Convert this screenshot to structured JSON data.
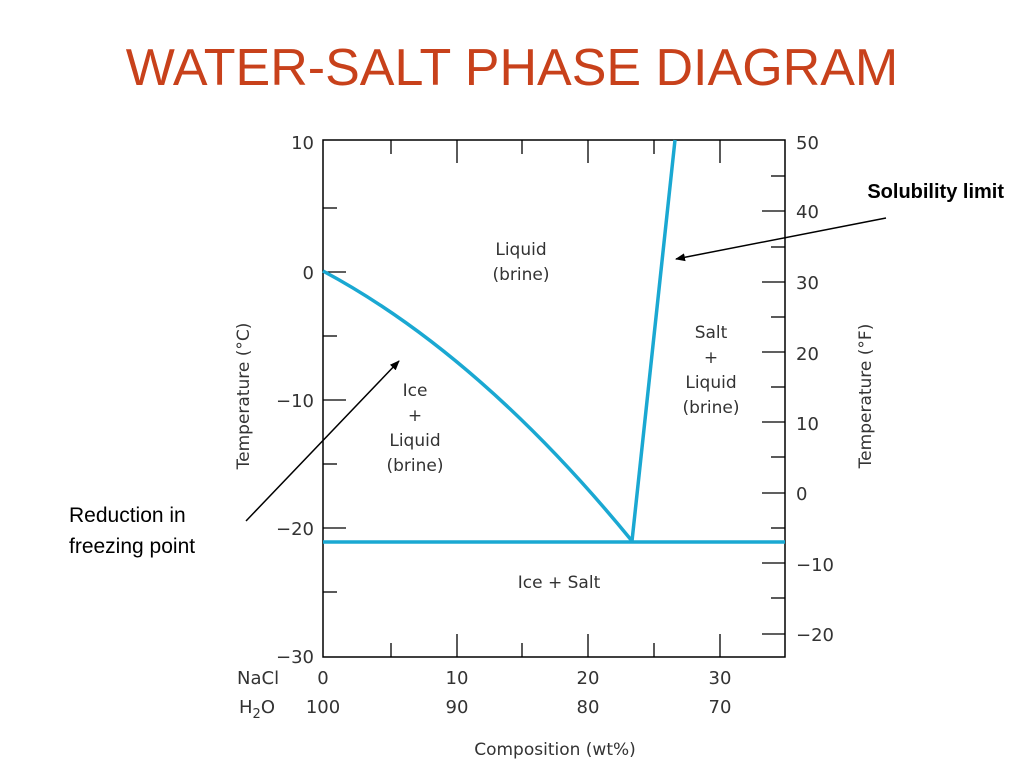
{
  "title": "WATER-SALT PHASE DIAGRAM",
  "annotations": {
    "solubility_limit": "Solubility limit",
    "freezing_line1": "Reduction in",
    "freezing_line2": "freezing point"
  },
  "colors": {
    "title": "#c8411b",
    "phase_boundary": "#1aa8d2",
    "axes": "#000000"
  },
  "left_axis": {
    "title": "Temperature (°C)",
    "ticks": [
      "10",
      "0",
      "−10",
      "−20",
      "−30"
    ]
  },
  "right_axis": {
    "title": "Temperature (°F)",
    "ticks": [
      "50",
      "40",
      "30",
      "20",
      "10",
      "0",
      "−10",
      "−20"
    ]
  },
  "x_axis": {
    "title": "Composition (wt%)",
    "row1_label": "NaCl",
    "row2_label_main": "H",
    "row2_label_sub": "2",
    "row2_label_tail": "O",
    "nacl_ticks": [
      "0",
      "10",
      "20",
      "30"
    ],
    "h2o_ticks": [
      "100",
      "90",
      "80",
      "70"
    ]
  },
  "regions": {
    "liquid": [
      "Liquid",
      "(brine)"
    ],
    "ice_liquid": [
      "Ice",
      "+",
      "Liquid",
      "(brine)"
    ],
    "salt_liquid": [
      "Salt",
      "+",
      "Liquid",
      "(brine)"
    ],
    "ice_salt": "Ice + Salt"
  },
  "chart_data": {
    "type": "phase-diagram",
    "x_unit": "wt% NaCl",
    "x_range": [
      0,
      35
    ],
    "y_unit": "°C",
    "y_range": [
      -30,
      10
    ],
    "y2_unit": "°F",
    "y2_range": [
      -22,
      50
    ],
    "liquidus_ice": [
      [
        0,
        0
      ],
      [
        5,
        -3.2
      ],
      [
        10,
        -7.1
      ],
      [
        15,
        -11.8
      ],
      [
        20,
        -17.0
      ],
      [
        23.3,
        -21.1
      ]
    ],
    "solubility_limit": [
      [
        23.3,
        -21.1
      ],
      [
        26.5,
        10
      ]
    ],
    "eutectic": {
      "composition": 23.3,
      "temperature": -21.1
    }
  }
}
